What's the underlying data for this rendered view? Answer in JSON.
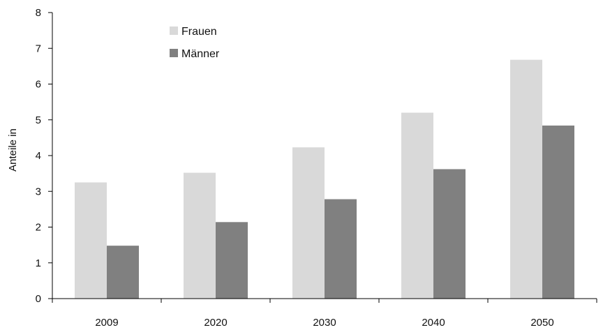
{
  "chart_data": {
    "type": "bar",
    "title": "",
    "xlabel": "",
    "ylabel": "Anteile in",
    "ylim": [
      0,
      8
    ],
    "yticks": [
      0,
      1,
      2,
      3,
      4,
      5,
      6,
      7,
      8
    ],
    "categories": [
      "2009",
      "2020",
      "2030",
      "2040",
      "2050"
    ],
    "series": [
      {
        "name": "Frauen",
        "color": "#d9d9d9",
        "values": [
          3.25,
          3.52,
          4.23,
          5.2,
          6.68
        ]
      },
      {
        "name": "Männer",
        "color": "#808080",
        "values": [
          1.48,
          2.14,
          2.78,
          3.62,
          4.84
        ]
      }
    ],
    "legend": "top-left",
    "grid": false
  }
}
